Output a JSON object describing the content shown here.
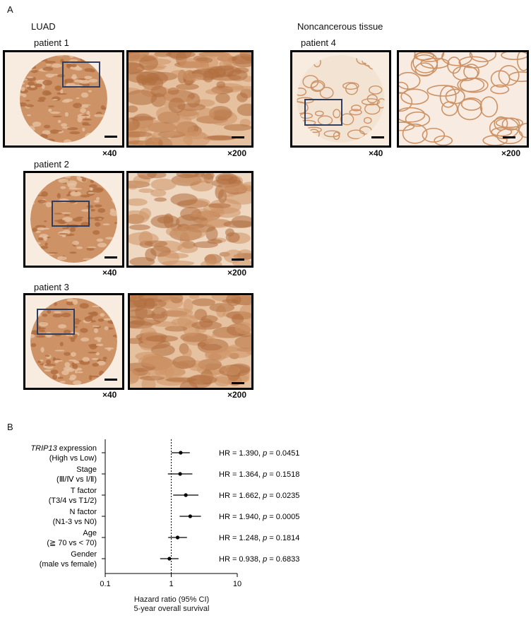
{
  "panel_a": {
    "letter": "A",
    "luad": {
      "title": "LUAD",
      "patients": [
        {
          "label": "patient 1",
          "mag_low": "×40",
          "mag_high": "×200"
        },
        {
          "label": "patient 2",
          "mag_low": "×40",
          "mag_high": "×200"
        },
        {
          "label": "patient 3",
          "mag_low": "×40",
          "mag_high": "×200"
        }
      ]
    },
    "noncancer": {
      "title": "Noncancerous tissue",
      "patient": {
        "label": "patient 4",
        "mag_low": "×40",
        "mag_high": "×200"
      }
    }
  },
  "panel_b": {
    "letter": "B"
  },
  "chart_data": {
    "type": "forest",
    "x_scale": "log",
    "xlim": [
      0.1,
      10
    ],
    "x_ticks": [
      "0.1",
      "1",
      "10"
    ],
    "reference_line": 1,
    "xlabel_lines": [
      "Hazard ratio (95% CI)",
      "5-year overall survival"
    ],
    "rows": [
      {
        "label_italic": "TRIP13",
        "label_rest": " expression",
        "sublabel": "(High vs Low)",
        "hr": 1.39,
        "ci": [
          1.01,
          1.91
        ],
        "annotation_hr": "HR = 1.390,",
        "annotation_p": "p",
        "annotation_pval": " = 0.0451"
      },
      {
        "label_italic": "",
        "label_rest": "Stage",
        "sublabel": "(Ⅲ/Ⅳ vs Ⅰ/Ⅱ)",
        "hr": 1.364,
        "ci": [
          0.89,
          2.09
        ],
        "annotation_hr": "HR = 1.364,",
        "annotation_p": "p",
        "annotation_pval": " = 0.1518"
      },
      {
        "label_italic": "",
        "label_rest": "T factor",
        "sublabel": "(T3/4 vs T1/2)",
        "hr": 1.662,
        "ci": [
          1.07,
          2.58
        ],
        "annotation_hr": "HR = 1.662,",
        "annotation_p": "p",
        "annotation_pval": " = 0.0235"
      },
      {
        "label_italic": "",
        "label_rest": "N factor",
        "sublabel": "(N1-3 vs N0)",
        "hr": 1.94,
        "ci": [
          1.34,
          2.82
        ],
        "annotation_hr": "HR = 1.940,",
        "annotation_p": "p",
        "annotation_pval": " = 0.0005"
      },
      {
        "label_italic": "",
        "label_rest": "Age",
        "sublabel": "(≧ 70 vs < 70)",
        "hr": 1.248,
        "ci": [
          0.9,
          1.73
        ],
        "annotation_hr": "HR = 1.248,",
        "annotation_p": "p",
        "annotation_pval": " = 0.1814"
      },
      {
        "label_italic": "",
        "label_rest": "Gender",
        "sublabel": "(male vs female)",
        "hr": 0.938,
        "ci": [
          0.68,
          1.29
        ],
        "annotation_hr": "HR = 0.938,",
        "annotation_p": "p",
        "annotation_pval": " = 0.6833"
      }
    ]
  },
  "colors": {
    "tissue_bg": "#f7ecdf",
    "stain_dark": "#b06d3e",
    "stain_mid": "#cd9366",
    "stain_light": "#e6c1a0",
    "roi_box": "#2e3e60"
  }
}
